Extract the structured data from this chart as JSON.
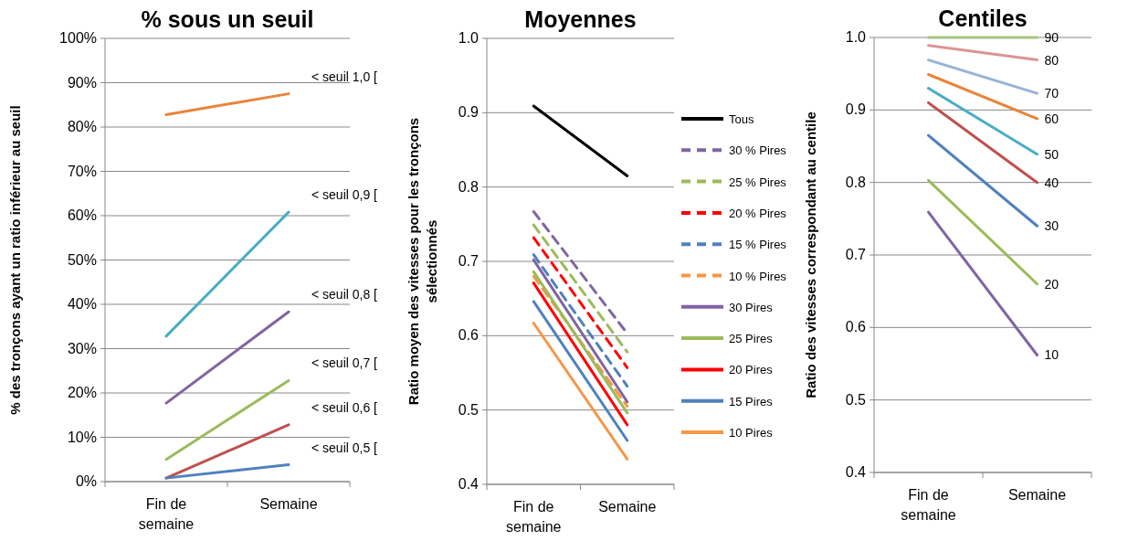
{
  "chart_data": [
    {
      "type": "line",
      "title": "% sous un seuil",
      "ylabel": "% des tronçons ayant un ratio inférieur au seuil",
      "categories": [
        "Fin de semaine",
        "Semaine"
      ],
      "ylim": [
        0,
        100
      ],
      "yticks": [
        {
          "value": 0,
          "label": "0%"
        },
        {
          "value": 10,
          "label": "10%"
        },
        {
          "value": 20,
          "label": "20%"
        },
        {
          "value": 30,
          "label": "30%"
        },
        {
          "value": 40,
          "label": "40%"
        },
        {
          "value": 50,
          "label": "50%"
        },
        {
          "value": 60,
          "label": "60%"
        },
        {
          "value": 70,
          "label": "70%"
        },
        {
          "value": 80,
          "label": "80%"
        },
        {
          "value": 90,
          "label": "90%"
        },
        {
          "value": 100,
          "label": "100%"
        }
      ],
      "grid": "y",
      "legend": false,
      "marker": "none",
      "series": [
        {
          "name": "< seuil 1,0 [",
          "color": "#e8853a",
          "values": [
            82.8,
            87.5
          ]
        },
        {
          "name": "< seuil 0,9 [",
          "color": "#4bacc6",
          "values": [
            32.8,
            60.8
          ]
        },
        {
          "name": "< seuil 0,8 [",
          "color": "#8064a2",
          "values": [
            17.7,
            38.3
          ]
        },
        {
          "name": "< seuil 0,7 [",
          "color": "#9bbb59",
          "values": [
            5,
            22.8
          ]
        },
        {
          "name": "< seuil 0,6 [",
          "color": "#c0504d",
          "values": [
            0.8,
            12.8
          ]
        },
        {
          "name": "< seuil 0,5 [",
          "color": "#4f81bd",
          "values": [
            0.8,
            3.8
          ]
        }
      ]
    },
    {
      "type": "line",
      "title": "Moyennes",
      "ylabel": "Ratio moyen des vitesses pour les tronçons sélectionnés",
      "categories": [
        "Fin de semaine",
        "Semaine"
      ],
      "ylim": [
        0.4,
        1
      ],
      "yticks": [
        0.4,
        0.5,
        0.6,
        0.7,
        0.8,
        0.9,
        {
          "value": 1,
          "label": "1.0"
        }
      ],
      "grid": "y",
      "legend": "right",
      "marker": "none",
      "series": [
        {
          "name": "Tous",
          "color": "#000000",
          "values": [
            0.909,
            0.815
          ]
        },
        {
          "name": "30 % Pires",
          "color": "#8064a2",
          "values": [
            0.767,
            0.603
          ],
          "line_style": "dashed"
        },
        {
          "name": "25 % Pires",
          "color": "#9bbb59",
          "values": [
            0.749,
            0.578
          ],
          "line_style": "dashed"
        },
        {
          "name": "20 % Pires",
          "color": "#ff0000",
          "values": [
            0.732,
            0.557
          ],
          "line_style": "dashed"
        },
        {
          "name": "15 % Pires",
          "color": "#4f81bd",
          "values": [
            0.709,
            0.532
          ],
          "line_style": "dashed"
        },
        {
          "name": "10 % Pires",
          "color": "#f79646",
          "values": [
            0.68,
            0.505
          ],
          "line_style": "dashed"
        },
        {
          "name": "30 Pires",
          "color": "#8064a2",
          "values": [
            0.702,
            0.511
          ]
        },
        {
          "name": "25 Pires",
          "color": "#9bbb59",
          "values": [
            0.686,
            0.496
          ]
        },
        {
          "name": "20 Pires",
          "color": "#ff0000",
          "values": [
            0.671,
            0.48
          ]
        },
        {
          "name": "15 Pires",
          "color": "#4f81bd",
          "values": [
            0.646,
            0.459
          ]
        },
        {
          "name": "10 Pires",
          "color": "#f79646",
          "values": [
            0.617,
            0.434
          ]
        }
      ]
    },
    {
      "type": "line",
      "title": "Centiles",
      "ylabel": "Ratio des vitesses correspondant au centile",
      "categories": [
        "Fin de semaine",
        "Semaine"
      ],
      "ylim": [
        0.4,
        1
      ],
      "yticks": [
        0.4,
        0.5,
        0.6,
        0.7,
        0.8,
        0.9,
        {
          "value": 1,
          "label": "1.0"
        }
      ],
      "grid": "y",
      "legend": false,
      "marker": "none",
      "series": [
        {
          "name": "90",
          "color": "#a9c47f",
          "values": [
            1,
            1
          ]
        },
        {
          "name": "80",
          "color": "#d99694",
          "values": [
            0.989,
            0.969
          ]
        },
        {
          "name": "70",
          "color": "#95b3d7",
          "values": [
            0.969,
            0.923
          ]
        },
        {
          "name": "60",
          "color": "#e8853a",
          "values": [
            0.949,
            0.888
          ]
        },
        {
          "name": "50",
          "color": "#4bacc6",
          "values": [
            0.93,
            0.839
          ]
        },
        {
          "name": "40",
          "color": "#c0504d",
          "values": [
            0.91,
            0.8
          ]
        },
        {
          "name": "30",
          "color": "#4f81bd",
          "values": [
            0.865,
            0.74
          ]
        },
        {
          "name": "20",
          "color": "#9bbb59",
          "values": [
            0.803,
            0.66
          ]
        },
        {
          "name": "10",
          "color": "#8064a2",
          "values": [
            0.759,
            0.562
          ]
        }
      ]
    }
  ]
}
